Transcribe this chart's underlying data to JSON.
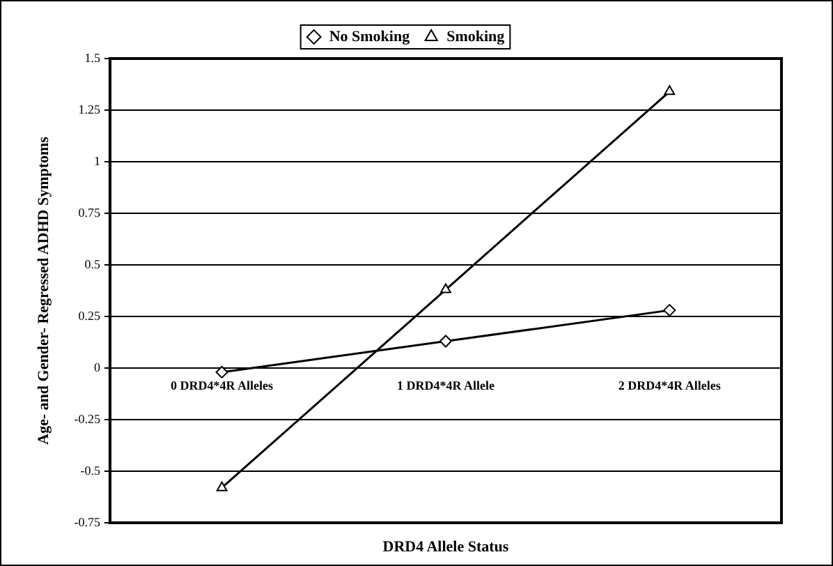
{
  "chart_data": {
    "type": "line",
    "xlabel": "DRD4 Allele Status",
    "ylabel": "Age- and Gender- Regressed ADHD Symptoms",
    "categories": [
      "0 DRD4*4R Alleles",
      "1 DRD4*4R Allele",
      "2 DRD4*4R Alleles"
    ],
    "series": [
      {
        "name": "No Smoking",
        "color": "#000000",
        "marker": "diamond",
        "values": [
          -0.02,
          0.13,
          0.28
        ]
      },
      {
        "name": "Smoking",
        "color": "#000000",
        "marker": "triangle",
        "values": [
          -0.58,
          0.38,
          1.34
        ]
      }
    ],
    "ylim": [
      -0.75,
      1.5
    ],
    "yticks": [
      -0.75,
      -0.5,
      -0.25,
      0,
      0.25,
      0.5,
      0.75,
      1,
      1.25,
      1.5
    ],
    "grid": "y",
    "legend": "top"
  }
}
